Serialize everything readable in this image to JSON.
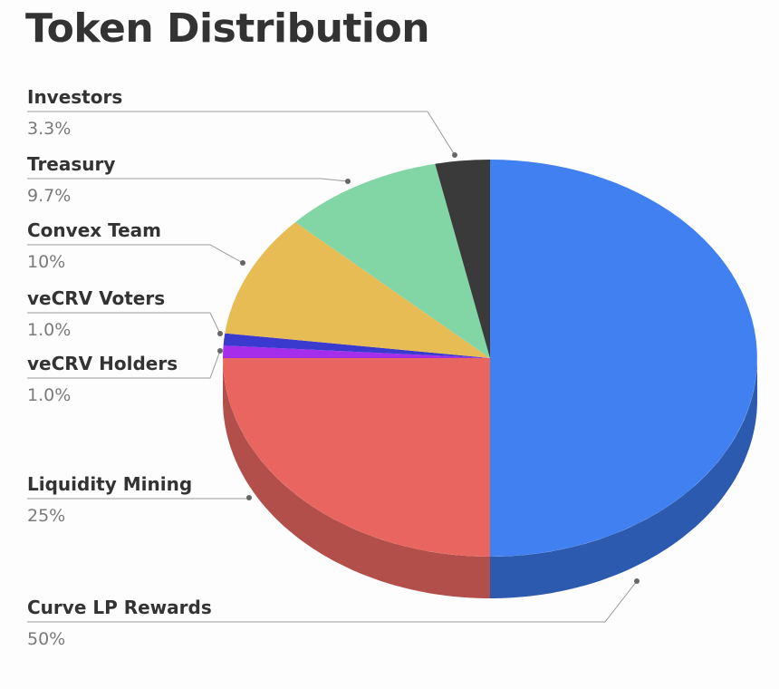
{
  "chart_data": {
    "type": "pie",
    "title": "Token Distribution",
    "slices": [
      {
        "label": "Curve LP Rewards",
        "value": 50,
        "value_label": "50%",
        "color": "#4080F0",
        "side_color": "#2C5AAE"
      },
      {
        "label": "Liquidity Mining",
        "value": 25,
        "value_label": "25%",
        "color": "#E8665F",
        "side_color": "#B24F4A"
      },
      {
        "label": "veCRV Holders",
        "value": 1.0,
        "value_label": "1.0%",
        "color": "#A42EEA",
        "side_color": "#7A22B0"
      },
      {
        "label": "veCRV Voters",
        "value": 1.0,
        "value_label": "1.0%",
        "color": "#3A3ACF",
        "side_color": "#2A2A98"
      },
      {
        "label": "Convex Team",
        "value": 10,
        "value_label": "10%",
        "color": "#E8BC55",
        "side_color": "#B08E40"
      },
      {
        "label": "Treasury",
        "value": 9.7,
        "value_label": "9.7%",
        "color": "#82D6A6",
        "side_color": "#5FA07C"
      },
      {
        "label": "Investors",
        "value": 3.3,
        "value_label": "3.3%",
        "color": "#3A3A3A",
        "side_color": "#262626"
      }
    ],
    "legend": "none",
    "style": "3d-pie"
  }
}
